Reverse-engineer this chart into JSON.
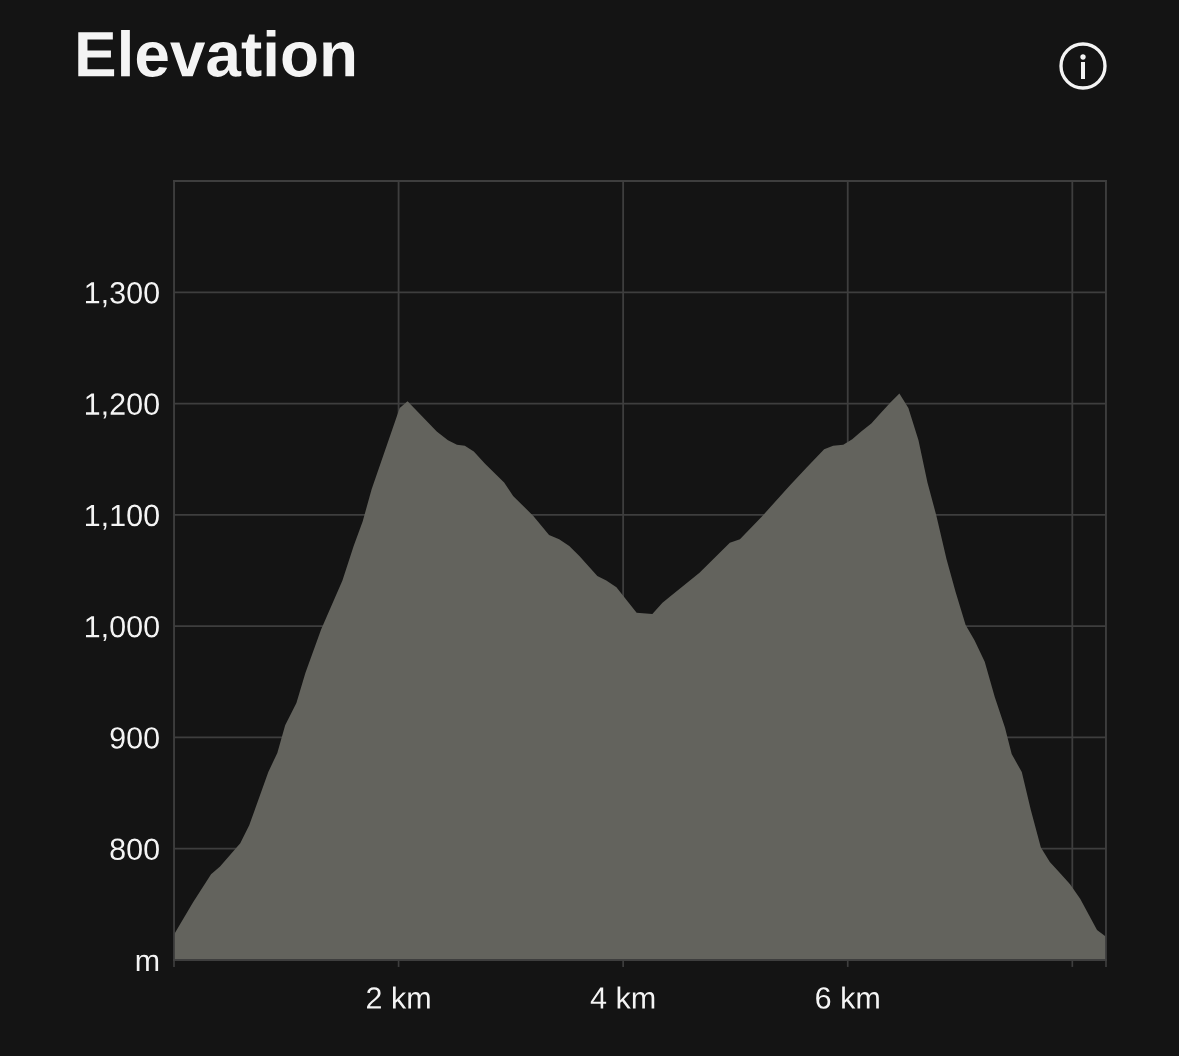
{
  "chart_data": {
    "type": "area",
    "title": "Elevation",
    "x": [
      0,
      0.17,
      0.33,
      0.41,
      0.59,
      0.67,
      0.84,
      0.92,
      0.99,
      1.09,
      1.17,
      1.31,
      1.5,
      1.6,
      1.68,
      1.76,
      2.01,
      2.08,
      2.34,
      2.44,
      2.52,
      2.59,
      2.67,
      2.77,
      2.94,
      3.02,
      3.2,
      3.34,
      3.43,
      3.52,
      3.61,
      3.77,
      3.85,
      3.94,
      4.12,
      4.26,
      4.35,
      4.41,
      4.68,
      4.95,
      5.04,
      5.24,
      5.48,
      5.63,
      5.79,
      5.87,
      5.96,
      6.04,
      6.12,
      6.21,
      6.29,
      6.38,
      6.46,
      6.54,
      6.63,
      6.71,
      6.79,
      6.88,
      6.96,
      7.05,
      7.13,
      7.22,
      7.31,
      7.4,
      7.46,
      7.55,
      7.63,
      7.72,
      7.8,
      7.9,
      7.98,
      8.07,
      8.22,
      8.3
    ],
    "values": [
      723,
      752,
      777,
      784,
      805,
      821,
      869,
      886,
      911,
      931,
      958,
      997,
      1041,
      1072,
      1094,
      1123,
      1196,
      1202,
      1175,
      1167,
      1163,
      1162,
      1157,
      1146,
      1129,
      1117,
      1099,
      1082,
      1078,
      1072,
      1063,
      1045,
      1041,
      1035,
      1012,
      1011,
      1021,
      1026,
      1048,
      1075,
      1078,
      1099,
      1126,
      1142,
      1159,
      1162,
      1163,
      1168,
      1175,
      1182,
      1191,
      1201,
      1209,
      1196,
      1167,
      1129,
      1099,
      1060,
      1031,
      1001,
      987,
      968,
      936,
      909,
      885,
      869,
      835,
      801,
      788,
      777,
      768,
      755,
      727,
      721
    ],
    "color": "#63635d",
    "xlim": [
      0,
      8.3
    ],
    "xticks": [
      {
        "value": 0,
        "label": null
      },
      {
        "value": 2,
        "label": "2 km"
      },
      {
        "value": 4,
        "label": "4 km"
      },
      {
        "value": 6,
        "label": "6 km"
      },
      {
        "value": 8,
        "label": null
      },
      {
        "value": 8.3,
        "label": null
      }
    ],
    "ylim": [
      700,
      1400
    ],
    "yticks": [
      {
        "value": 700,
        "label": "m"
      },
      800,
      900,
      {
        "value": 1000,
        "label": "1,000"
      },
      {
        "value": 1100,
        "label": "1,100"
      },
      {
        "value": 1200,
        "label": "1,200"
      },
      {
        "value": 1300,
        "label": "1,300"
      }
    ],
    "grid": true
  }
}
